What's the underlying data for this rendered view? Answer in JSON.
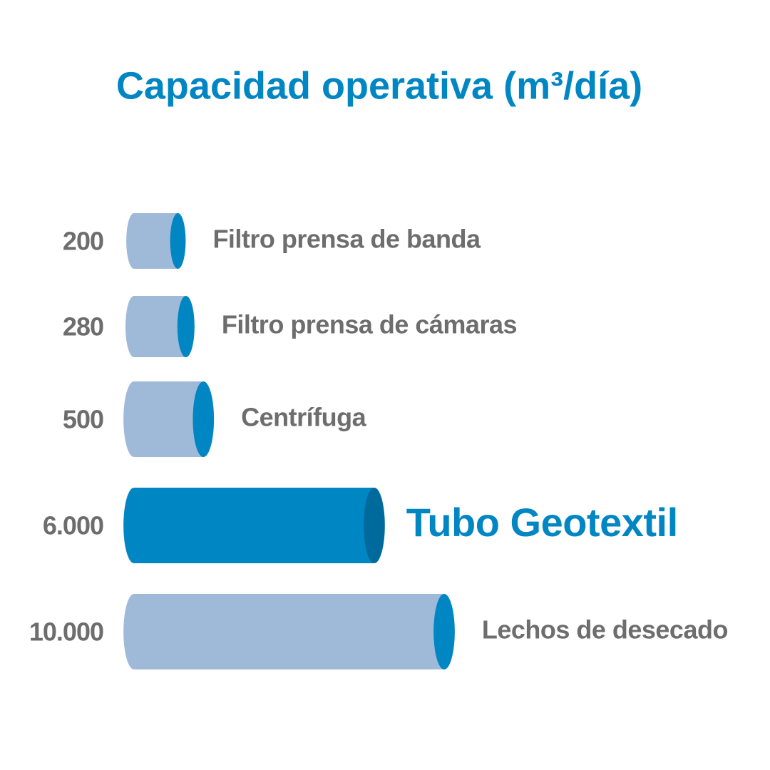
{
  "chart_data": {
    "type": "bar",
    "orientation": "horizontal",
    "title": "Capacidad operativa (m³/día)",
    "categories": [
      "Filtro prensa de banda",
      "Filtro prensa de cámaras",
      "Centrífuga",
      "Tubo Geotextil",
      "Lechos de desecado"
    ],
    "values": [
      200,
      280,
      500,
      6000,
      10000
    ],
    "value_labels": [
      "200",
      "280",
      "500",
      "6.000",
      "10.000"
    ],
    "colors": [
      "#9fbad9",
      "#9fbad9",
      "#9fbad9",
      "#0086c3",
      "#9fbad9"
    ],
    "cap_colors": [
      "#0086c3",
      "#0086c3",
      "#0086c3",
      "#006a9c",
      "#0086c3"
    ],
    "highlight": 3,
    "xlim": [
      0,
      10000
    ],
    "scale": "sqrt"
  }
}
